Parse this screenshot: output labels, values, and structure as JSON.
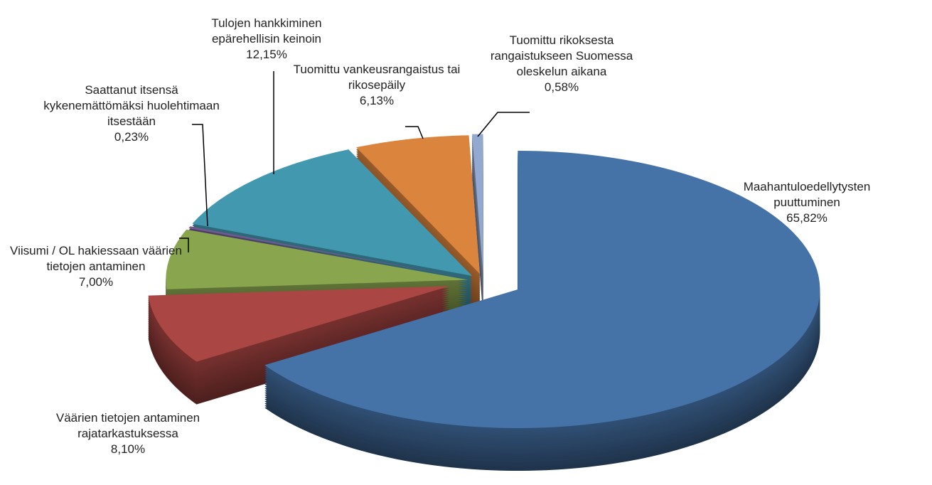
{
  "chart_data": {
    "type": "pie",
    "categories": [
      "Maahantuloedellytysten puuttuminen",
      "Väärien tietojen antaminen rajatarkastuksessa",
      "Viisumi / OL hakiessaan väärien tietojen antaminen",
      "Saattanut itsensä kykenemättömäksi huolehtimaan itsestään",
      "Tulojen hankkiminen epärehellisin keinoin",
      "Tuomittu vankeusrangaistus tai rikosepäily",
      "Tuomittu rikoksesta rangaistukseen Suomessa oleskelun aikana"
    ],
    "values": [
      65.82,
      8.1,
      7.0,
      0.23,
      12.15,
      6.13,
      0.58
    ],
    "value_labels": [
      "65,82%",
      "8,10%",
      "7,00%",
      "0,23%",
      "12,15%",
      "6,13%",
      "0,58%"
    ],
    "colors": [
      "#4572a7",
      "#aa4643",
      "#89a54e",
      "#71588f",
      "#4198af",
      "#db843d",
      "#93a9cf"
    ]
  }
}
